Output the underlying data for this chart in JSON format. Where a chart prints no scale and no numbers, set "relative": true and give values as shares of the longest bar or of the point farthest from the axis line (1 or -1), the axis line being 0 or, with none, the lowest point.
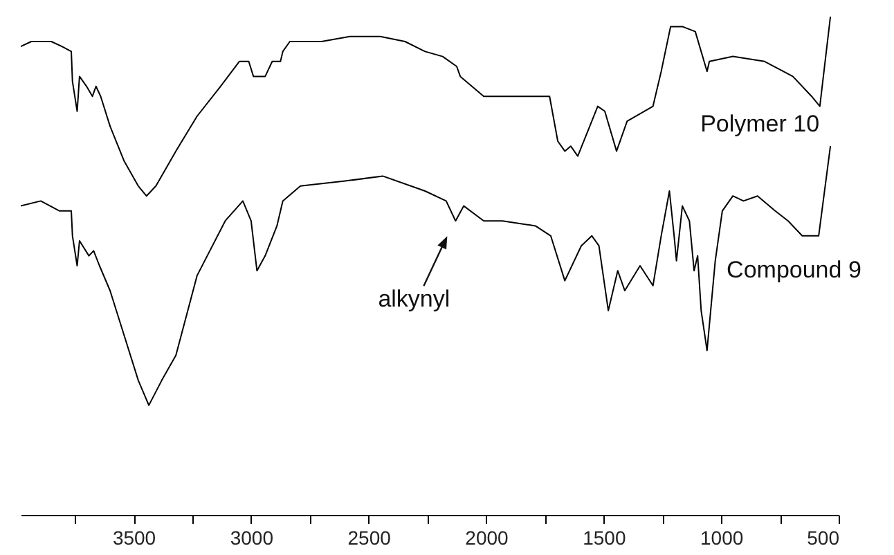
{
  "chart_data": {
    "type": "line",
    "relative": true,
    "xlim": [
      3980,
      500
    ],
    "xticks": [
      {
        "value": 3750,
        "label": null
      },
      3500,
      {
        "value": 3250,
        "label": null
      },
      3000,
      {
        "value": 2750,
        "label": null
      },
      2500,
      {
        "value": 2250,
        "label": null
      },
      2000,
      {
        "value": 1750,
        "label": null
      },
      1500,
      {
        "value": 1250,
        "label": null
      },
      1000,
      {
        "value": 750,
        "label": null
      },
      500
    ],
    "tick_labels": "x",
    "annotations": [
      {
        "text": "alkynyl",
        "x": 2130,
        "y": 0.59
      }
    ],
    "series": [
      {
        "name": "Polymer 10",
        "color": "#000000",
        "x": [
          3980,
          3935,
          3895,
          3850,
          3805,
          3765,
          3760,
          3740,
          3730,
          3700,
          3675,
          3660,
          3640,
          3600,
          3540,
          3480,
          3445,
          3405,
          3320,
          3230,
          3130,
          3050,
          3010,
          2990,
          2940,
          2910,
          2875,
          2865,
          2835,
          2700,
          2580,
          2450,
          2345,
          2260,
          2185,
          2125,
          2110,
          2010,
          1930,
          1815,
          1730,
          1695,
          1665,
          1640,
          1610,
          1525,
          1495,
          1445,
          1400,
          1290,
          1255,
          1215,
          1165,
          1110,
          1085,
          1060,
          1050,
          950,
          815,
          695,
          615,
          580,
          535
        ],
        "values": [
          0.94,
          0.95,
          0.95,
          0.95,
          0.94,
          0.93,
          0.87,
          0.81,
          0.88,
          0.86,
          0.84,
          0.86,
          0.84,
          0.78,
          0.71,
          0.66,
          0.64,
          0.66,
          0.73,
          0.8,
          0.86,
          0.91,
          0.91,
          0.88,
          0.88,
          0.91,
          0.91,
          0.93,
          0.95,
          0.95,
          0.96,
          0.96,
          0.95,
          0.93,
          0.92,
          0.9,
          0.88,
          0.84,
          0.84,
          0.84,
          0.84,
          0.75,
          0.73,
          0.74,
          0.72,
          0.82,
          0.81,
          0.73,
          0.79,
          0.82,
          0.89,
          0.98,
          0.98,
          0.97,
          0.93,
          0.89,
          0.91,
          0.92,
          0.91,
          0.88,
          0.84,
          0.82,
          1.0
        ]
      },
      {
        "name": "Compound 9",
        "color": "#000000",
        "x": [
          3980,
          3895,
          3815,
          3765,
          3760,
          3740,
          3730,
          3690,
          3670,
          3645,
          3600,
          3540,
          3480,
          3435,
          3380,
          3320,
          3230,
          3110,
          3035,
          3000,
          2975,
          2940,
          2890,
          2865,
          2790,
          2600,
          2440,
          2260,
          2170,
          2130,
          2095,
          2010,
          1930,
          1790,
          1725,
          1665,
          1595,
          1550,
          1520,
          1480,
          1440,
          1410,
          1345,
          1290,
          1255,
          1220,
          1200,
          1190,
          1165,
          1135,
          1115,
          1100,
          1085,
          1060,
          1025,
          995,
          950,
          905,
          845,
          770,
          715,
          655,
          585,
          535
        ],
        "values": [
          0.62,
          0.63,
          0.61,
          0.61,
          0.56,
          0.5,
          0.55,
          0.52,
          0.53,
          0.5,
          0.45,
          0.36,
          0.27,
          0.22,
          0.27,
          0.32,
          0.48,
          0.59,
          0.63,
          0.59,
          0.49,
          0.52,
          0.58,
          0.63,
          0.66,
          0.67,
          0.68,
          0.65,
          0.63,
          0.59,
          0.62,
          0.59,
          0.59,
          0.58,
          0.56,
          0.47,
          0.54,
          0.56,
          0.54,
          0.41,
          0.49,
          0.45,
          0.5,
          0.46,
          0.56,
          0.65,
          0.56,
          0.51,
          0.62,
          0.59,
          0.49,
          0.52,
          0.41,
          0.33,
          0.51,
          0.61,
          0.64,
          0.63,
          0.64,
          0.61,
          0.59,
          0.56,
          0.56,
          0.74
        ]
      }
    ]
  }
}
